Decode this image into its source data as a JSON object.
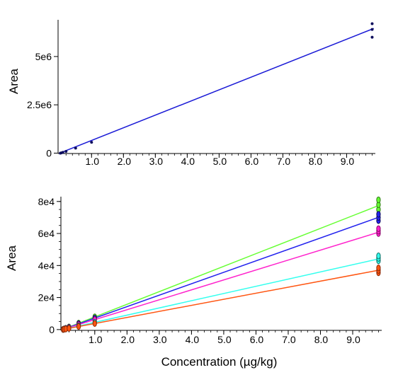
{
  "chart_data": [
    {
      "type": "scatter",
      "title": "",
      "xlabel": "",
      "ylabel": "Area",
      "xlim": [
        -0.05,
        9.9
      ],
      "ylim": [
        -20000,
        6900000
      ],
      "x_ticks": [
        "1.0",
        "2.0",
        "3.0",
        "4.0",
        "5.0",
        "6.0",
        "7.0",
        "8.0",
        "9.0"
      ],
      "x_tick_values": [
        1,
        2,
        3,
        4,
        5,
        6,
        7,
        8,
        9
      ],
      "y_ticks": [
        "0",
        "2.5e6",
        "5e6"
      ],
      "y_tick_values": [
        0,
        2500000,
        5000000
      ],
      "grid": false,
      "series": [
        {
          "color": "#1a1ad6",
          "point_color": "#0d0d5c",
          "points": [
            {
              "x": 0.02,
              "y": 0
            },
            {
              "x": 0.05,
              "y": 10000
            },
            {
              "x": 0.1,
              "y": 40000
            },
            {
              "x": 0.2,
              "y": 90000
            },
            {
              "x": 0.5,
              "y": 260000
            },
            {
              "x": 1.0,
              "y": 560000
            },
            {
              "x": 9.8,
              "y": 6000000
            },
            {
              "x": 9.8,
              "y": 6400000
            },
            {
              "x": 9.8,
              "y": 6700000
            }
          ],
          "fit": {
            "intercept": 0,
            "slope": 655000
          }
        }
      ]
    },
    {
      "type": "scatter",
      "title": "",
      "xlabel": "Concentration (µg/kg)",
      "ylabel": "Area",
      "xlim": [
        -0.05,
        9.9
      ],
      "ylim": [
        -500,
        83000
      ],
      "x_ticks": [
        "1.0",
        "2.0",
        "3.0",
        "4.0",
        "5.0",
        "6.0",
        "7.0",
        "8.0",
        "9.0"
      ],
      "x_tick_values": [
        1,
        2,
        3,
        4,
        5,
        6,
        7,
        8,
        9
      ],
      "y_ticks": [
        "0",
        "2e4",
        "4e4",
        "6e4",
        "8e4"
      ],
      "y_tick_values": [
        0,
        20000,
        40000,
        60000,
        80000
      ],
      "grid": false,
      "series": [
        {
          "color": "#66ff33",
          "point_color": "#2e7a12",
          "points": [
            {
              "x": 0.02,
              "y": 150
            },
            {
              "x": 0.05,
              "y": 400
            },
            {
              "x": 0.1,
              "y": 800
            },
            {
              "x": 0.2,
              "y": 1600
            },
            {
              "x": 0.5,
              "y": 4000
            },
            {
              "x": 1.0,
              "y": 7900
            },
            {
              "x": 9.8,
              "y": 75000
            },
            {
              "x": 9.8,
              "y": 78000
            },
            {
              "x": 9.8,
              "y": 81000
            }
          ],
          "fit": {
            "intercept": 0,
            "slope": 7900
          }
        },
        {
          "color": "#2222ee",
          "point_color": "#0d0d5c",
          "points": [
            {
              "x": 0.02,
              "y": 150
            },
            {
              "x": 0.05,
              "y": 350
            },
            {
              "x": 0.1,
              "y": 700
            },
            {
              "x": 0.2,
              "y": 1400
            },
            {
              "x": 0.5,
              "y": 3600
            },
            {
              "x": 1.0,
              "y": 7100
            },
            {
              "x": 9.8,
              "y": 68000
            },
            {
              "x": 9.8,
              "y": 70000
            },
            {
              "x": 9.8,
              "y": 72000
            }
          ],
          "fit": {
            "intercept": 0,
            "slope": 7150
          }
        },
        {
          "color": "#ff22cc",
          "point_color": "#8a0a6a",
          "points": [
            {
              "x": 0.02,
              "y": 120
            },
            {
              "x": 0.05,
              "y": 300
            },
            {
              "x": 0.1,
              "y": 600
            },
            {
              "x": 0.2,
              "y": 1200
            },
            {
              "x": 0.5,
              "y": 3100
            },
            {
              "x": 1.0,
              "y": 6200
            },
            {
              "x": 9.8,
              "y": 60000
            },
            {
              "x": 9.8,
              "y": 61500
            },
            {
              "x": 9.8,
              "y": 63000
            }
          ],
          "fit": {
            "intercept": 0,
            "slope": 6200
          }
        },
        {
          "color": "#33ffee",
          "point_color": "#0c6e66",
          "points": [
            {
              "x": 0.02,
              "y": 90
            },
            {
              "x": 0.05,
              "y": 220
            },
            {
              "x": 0.1,
              "y": 450
            },
            {
              "x": 0.2,
              "y": 900
            },
            {
              "x": 0.5,
              "y": 2300
            },
            {
              "x": 1.0,
              "y": 4500
            },
            {
              "x": 9.8,
              "y": 43000
            },
            {
              "x": 9.8,
              "y": 44500
            },
            {
              "x": 9.8,
              "y": 46000
            }
          ],
          "fit": {
            "intercept": 0,
            "slope": 4500
          }
        },
        {
          "color": "#ff5511",
          "point_color": "#8a2a08",
          "points": [
            {
              "x": 0.02,
              "y": 80
            },
            {
              "x": 0.05,
              "y": 190
            },
            {
              "x": 0.1,
              "y": 380
            },
            {
              "x": 0.2,
              "y": 760
            },
            {
              "x": 0.5,
              "y": 1900
            },
            {
              "x": 1.0,
              "y": 3800
            },
            {
              "x": 9.8,
              "y": 35500
            },
            {
              "x": 9.8,
              "y": 37000
            },
            {
              "x": 9.8,
              "y": 38500
            }
          ],
          "fit": {
            "intercept": 0,
            "slope": 3780
          }
        }
      ]
    }
  ]
}
